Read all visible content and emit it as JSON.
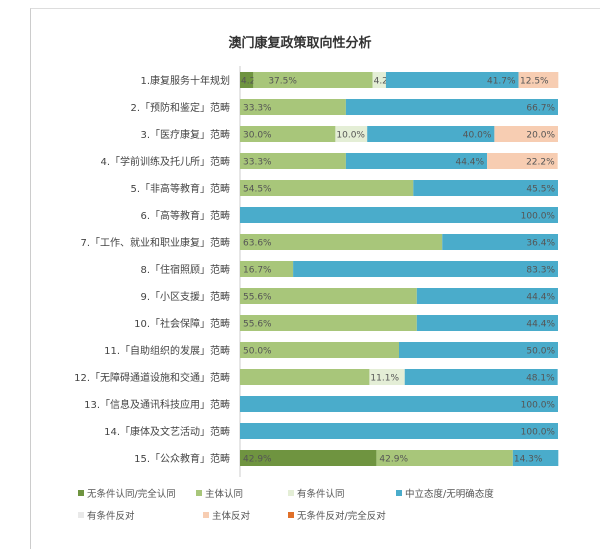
{
  "chart_data": {
    "type": "bar",
    "orientation": "horizontal-stacked-100",
    "title": "澳门康复政策取向性分析",
    "categories": [
      "1.康复服务十年规划",
      "2.「预防和鉴定」范畴",
      "3.「医疗康复」范畴",
      "4.「学前训练及托儿所」范畴",
      "5.「非高等教育」范畴",
      "6.「高等教育」范畴",
      "7.「工作、就业和职业康复」范畴",
      "8.「住宿照顾」范畴",
      "9.「小区支援」范畴",
      "10.「社会保障」范畴",
      "11.「自助组织的发展」范畴",
      "12.「无障碍通道设施和交通」范畴",
      "13.「信息及通讯科技应用」范畴",
      "14.「康体及文艺活动」范畴",
      "15.「公众教育」范畴"
    ],
    "series": [
      {
        "name": "无条件认同/完全认同",
        "color": "#6f9440",
        "values": [
          4.2,
          0,
          0,
          0,
          0,
          0,
          0,
          0,
          0,
          0,
          0,
          0,
          0,
          0,
          42.9
        ]
      },
      {
        "name": "主体认同",
        "color": "#a8c67a",
        "values": [
          37.5,
          33.3,
          30.0,
          33.3,
          54.5,
          0,
          63.6,
          16.7,
          55.6,
          55.6,
          50.0,
          40.7,
          0,
          0,
          42.9
        ]
      },
      {
        "name": "有条件认同",
        "color": "#e4eed6",
        "values": [
          4.2,
          0,
          10.0,
          0,
          0,
          0,
          0,
          0,
          0,
          0,
          0,
          11.1,
          0,
          0,
          0
        ]
      },
      {
        "name": "中立态度/无明确态度",
        "color": "#4aaccb",
        "values": [
          41.7,
          66.7,
          40.0,
          44.4,
          45.5,
          100.0,
          36.4,
          83.3,
          44.4,
          44.4,
          50.0,
          48.1,
          100.0,
          100.0,
          14.3
        ]
      },
      {
        "name": "有条件反对",
        "color": "#e9e9e9",
        "values": [
          0,
          0,
          0,
          0,
          0,
          0,
          0,
          0,
          0,
          0,
          0,
          0,
          0,
          0,
          0
        ]
      },
      {
        "name": "主体反对",
        "color": "#f7cdb2",
        "values": [
          12.5,
          0,
          20.0,
          22.2,
          0,
          0,
          0,
          0,
          0,
          0,
          0,
          0,
          0,
          0,
          0
        ]
      },
      {
        "name": "无条件反对/完全反对",
        "color": "#e0702a",
        "values": [
          0,
          0,
          0,
          0,
          0,
          0,
          0,
          0,
          0,
          0,
          0,
          0,
          0,
          0,
          0
        ]
      }
    ],
    "hidden_labels": [
      [
        11,
        1
      ]
    ],
    "xlim": [
      0,
      100
    ],
    "legend": "bottom"
  }
}
